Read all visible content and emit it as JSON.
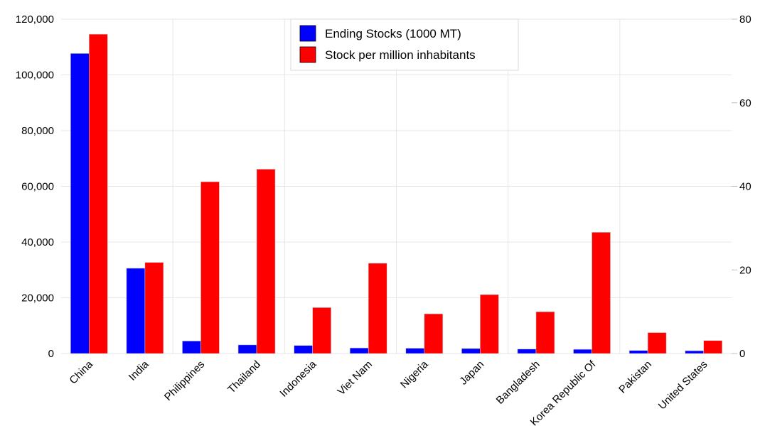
{
  "chart_data": {
    "type": "bar",
    "title": "",
    "xlabel": "",
    "ylabel": "",
    "y2label": "",
    "categories": [
      "China",
      "India",
      "Philippines",
      "Thailand",
      "Indonesia",
      "Viet Nam",
      "Nigeria",
      "Japan",
      "Bangladesh",
      "Korea Republic Of",
      "Pakistan",
      "United States"
    ],
    "series": [
      {
        "name": "Ending Stocks (1000 MT)",
        "axis": "left",
        "color": "#0000ff",
        "values": [
          107700,
          30600,
          4500,
          3100,
          2900,
          2000,
          1900,
          1800,
          1600,
          1500,
          1100,
          1000
        ]
      },
      {
        "name": "Stock per million inhabitants",
        "axis": "right",
        "color": "#ff0000",
        "values": [
          76.4,
          21.8,
          41.1,
          44.1,
          11.0,
          21.6,
          9.5,
          14.1,
          10.0,
          29.0,
          5.0,
          3.1
        ]
      }
    ],
    "ylim": [
      0,
      120000
    ],
    "y2lim": [
      0,
      80
    ],
    "y_ticks": [
      "0",
      "20,000",
      "40,000",
      "60,000",
      "80,000",
      "100,000",
      "120,000"
    ],
    "y2_ticks": [
      "0",
      "20",
      "40",
      "60",
      "80"
    ],
    "grid": true,
    "legend_position": "top-center"
  }
}
